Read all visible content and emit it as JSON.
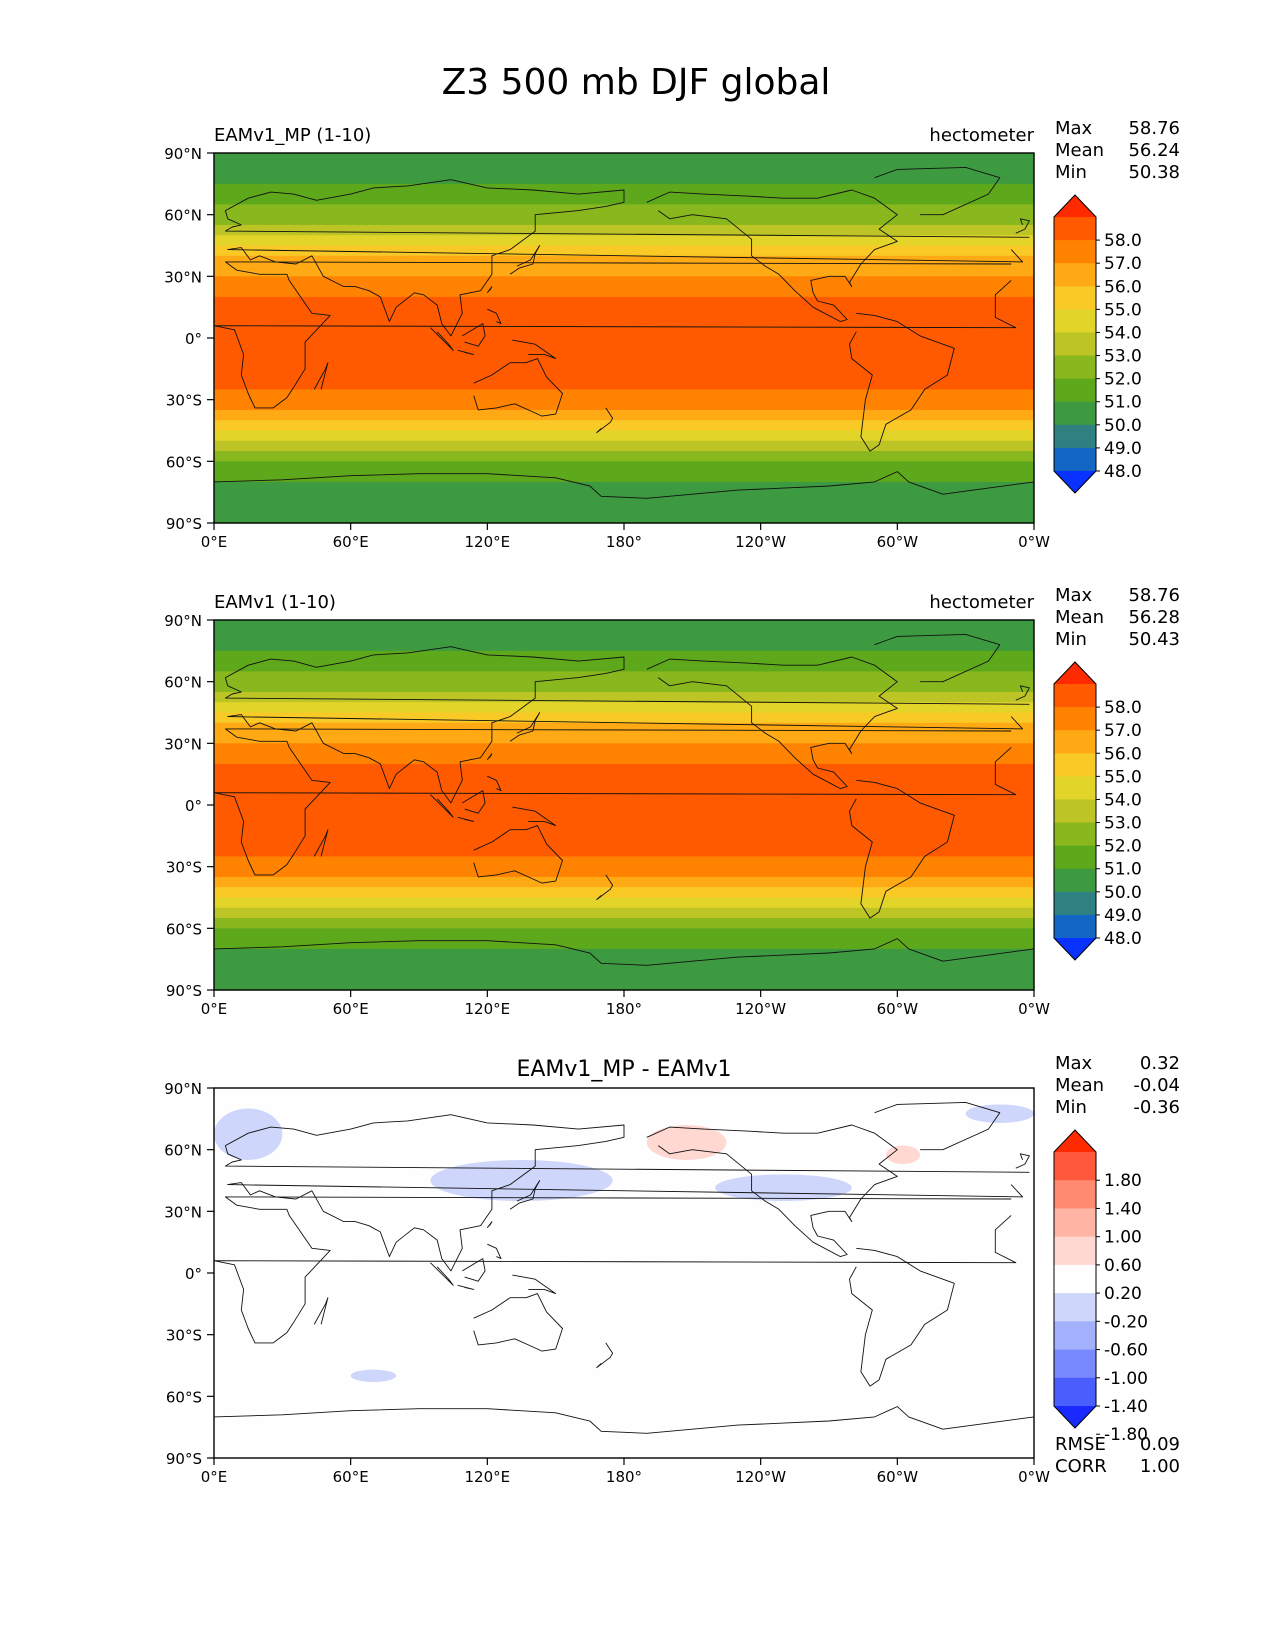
{
  "figure": {
    "title": "Z3 500 mb DJF global"
  },
  "axes": {
    "y_ticks": [
      "90°N",
      "60°N",
      "30°N",
      "0°",
      "30°S",
      "60°S",
      "90°S"
    ],
    "x_ticks": [
      "0°E",
      "60°E",
      "120°E",
      "180°",
      "120°W",
      "60°W",
      "0°W"
    ]
  },
  "panels": [
    {
      "name": "EAMv1_MP (1-10)",
      "units": "hectometer",
      "stats": [
        {
          "label": "Max",
          "value": "58.76"
        },
        {
          "label": "Mean",
          "value": "56.24"
        },
        {
          "label": "Min",
          "value": "50.38"
        }
      ]
    },
    {
      "name": "EAMv1 (1-10)",
      "units": "hectometer",
      "stats": [
        {
          "label": "Max",
          "value": "58.76"
        },
        {
          "label": "Mean",
          "value": "56.28"
        },
        {
          "label": "Min",
          "value": "50.43"
        }
      ]
    },
    {
      "name": "EAMv1_MP - EAMv1",
      "units": "",
      "stats": [
        {
          "label": "Max",
          "value": "0.32"
        },
        {
          "label": "Mean",
          "value": "-0.04"
        },
        {
          "label": "Min",
          "value": "-0.36"
        }
      ],
      "metrics": [
        {
          "label": "RMSE",
          "value": "0.09"
        },
        {
          "label": "CORR",
          "value": "1.00"
        }
      ]
    }
  ],
  "colorbars": {
    "field": {
      "labels": [
        "58.0",
        "57.0",
        "56.0",
        "55.0",
        "54.0",
        "53.0",
        "52.0",
        "51.0",
        "50.0",
        "49.0",
        "48.0"
      ],
      "colors": [
        "#ff2a00",
        "#ff5a00",
        "#ff8200",
        "#ffa914",
        "#f9c926",
        "#e2d429",
        "#bcc525",
        "#89b71e",
        "#5ea81c",
        "#3d9a40",
        "#2f8080",
        "#1466c4",
        "#0a32ff"
      ]
    },
    "diff": {
      "labels": [
        "1.80",
        "1.40",
        "1.00",
        "0.60",
        "0.20",
        "-0.20",
        "-0.60",
        "-1.00",
        "-1.40",
        "-1.80"
      ],
      "colors": [
        "#ff2a00",
        "#ff583c",
        "#ff8a70",
        "#ffb4a4",
        "#ffd8d2",
        "#fefefe",
        "#cfd6fb",
        "#a3b0fb",
        "#7888fd",
        "#4a5efe",
        "#1a2aff"
      ]
    }
  },
  "chart_data": [
    {
      "type": "heatmap",
      "title": "EAMv1_MP (1-10)",
      "units": "hectometer",
      "xlabel": "",
      "ylabel": "",
      "xlim": [
        0,
        360
      ],
      "ylim": [
        -90,
        90
      ],
      "grid": false,
      "levels": [
        48,
        49,
        50,
        51,
        52,
        53,
        54,
        55,
        56,
        57,
        58
      ],
      "zonal_profile": {
        "lat": [
          90,
          80,
          70,
          60,
          50,
          40,
          30,
          20,
          10,
          0,
          -10,
          -20,
          -30,
          -40,
          -50,
          -60,
          -70,
          -80,
          -90
        ],
        "value": [
          50.4,
          50.8,
          51.3,
          52.3,
          54.0,
          55.7,
          57.2,
          58.2,
          58.7,
          58.76,
          58.7,
          58.4,
          57.6,
          55.9,
          53.8,
          51.9,
          50.9,
          50.6,
          50.4
        ]
      },
      "max": 58.76,
      "mean": 56.24,
      "min": 50.38
    },
    {
      "type": "heatmap",
      "title": "EAMv1 (1-10)",
      "units": "hectometer",
      "xlabel": "",
      "ylabel": "",
      "xlim": [
        0,
        360
      ],
      "ylim": [
        -90,
        90
      ],
      "grid": false,
      "levels": [
        48,
        49,
        50,
        51,
        52,
        53,
        54,
        55,
        56,
        57,
        58
      ],
      "zonal_profile": {
        "lat": [
          90,
          80,
          70,
          60,
          50,
          40,
          30,
          20,
          10,
          0,
          -10,
          -20,
          -30,
          -40,
          -50,
          -60,
          -70,
          -80,
          -90
        ],
        "value": [
          50.4,
          50.8,
          51.3,
          52.4,
          54.1,
          55.8,
          57.2,
          58.2,
          58.7,
          58.76,
          58.7,
          58.4,
          57.6,
          55.9,
          53.8,
          51.9,
          50.9,
          50.6,
          50.4
        ]
      },
      "max": 58.76,
      "mean": 56.28,
      "min": 50.43
    },
    {
      "type": "heatmap",
      "title": "EAMv1_MP - EAMv1",
      "units": "",
      "xlabel": "",
      "ylabel": "",
      "xlim": [
        0,
        360
      ],
      "ylim": [
        -90,
        90
      ],
      "grid": false,
      "levels": [
        -1.8,
        -1.4,
        -1.0,
        -0.6,
        -0.2,
        0.2,
        0.6,
        1.0,
        1.4,
        1.8
      ],
      "anomaly_regions": [
        {
          "sign": "negative",
          "lon": [
            0,
            30
          ],
          "lat": [
            55,
            80
          ]
        },
        {
          "sign": "negative",
          "lon": [
            95,
            175
          ],
          "lat": [
            35,
            55
          ]
        },
        {
          "sign": "negative",
          "lon": [
            220,
            280
          ],
          "lat": [
            35,
            48
          ]
        },
        {
          "sign": "negative",
          "lon": [
            330,
            360
          ],
          "lat": [
            73,
            82
          ]
        },
        {
          "sign": "negative",
          "lon": [
            60,
            80
          ],
          "lat": [
            -47,
            -53
          ]
        },
        {
          "sign": "positive",
          "lon": [
            190,
            225
          ],
          "lat": [
            55,
            72
          ]
        },
        {
          "sign": "positive",
          "lon": [
            295,
            310
          ],
          "lat": [
            53,
            62
          ]
        }
      ],
      "max": 0.32,
      "mean": -0.04,
      "min": -0.36,
      "rmse": 0.09,
      "corr": 1.0
    }
  ]
}
